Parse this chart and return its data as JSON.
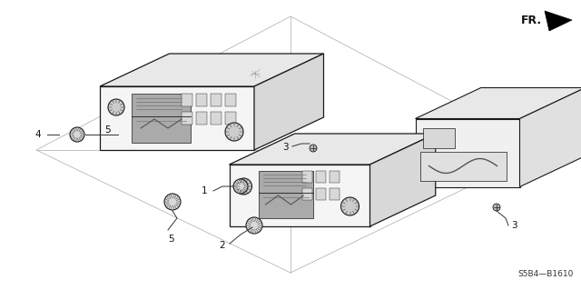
{
  "bg_color": "#ffffff",
  "dc": "#1a1a1a",
  "lc": "#555555",
  "part_code": "S5B4—B1610",
  "fr_label": "FR.",
  "figsize": [
    6.4,
    3.19
  ],
  "dpi": 100,
  "label_fs": 7.5,
  "grid_color": "#aaaaaa",
  "grid_lw": 0.5,
  "radio_face_color": "#f5f5f5",
  "radio_top_color": "#e8e8e8",
  "radio_side_color": "#d8d8d8",
  "radio_back_face": "#f0f0f0",
  "radio_back_side": "#e0e0e0",
  "radio_back_top": "#e8e8e8",
  "detail_dark": "#333333",
  "detail_mid": "#888888",
  "detail_light": "#cccccc"
}
